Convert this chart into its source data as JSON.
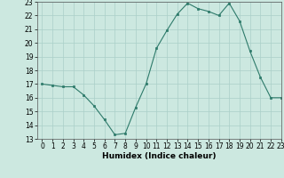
{
  "x": [
    0,
    1,
    2,
    3,
    4,
    5,
    6,
    7,
    8,
    9,
    10,
    11,
    12,
    13,
    14,
    15,
    16,
    17,
    18,
    19,
    20,
    21,
    22,
    23
  ],
  "y": [
    17.0,
    16.9,
    16.8,
    16.8,
    16.2,
    15.4,
    14.4,
    13.3,
    13.4,
    15.3,
    17.0,
    19.6,
    20.9,
    22.1,
    22.9,
    22.5,
    22.3,
    22.0,
    22.9,
    21.6,
    19.4,
    17.5,
    16.0,
    16.0
  ],
  "line_color": "#2d7a6a",
  "marker_color": "#2d7a6a",
  "bg_color": "#cce8e0",
  "grid_color": "#aacfc8",
  "xlabel": "Humidex (Indice chaleur)",
  "ylim": [
    13,
    23
  ],
  "xlim": [
    -0.5,
    23
  ],
  "yticks": [
    13,
    14,
    15,
    16,
    17,
    18,
    19,
    20,
    21,
    22,
    23
  ],
  "xticks": [
    0,
    1,
    2,
    3,
    4,
    5,
    6,
    7,
    8,
    9,
    10,
    11,
    12,
    13,
    14,
    15,
    16,
    17,
    18,
    19,
    20,
    21,
    22,
    23
  ],
  "tick_fontsize": 5.5,
  "xlabel_fontsize": 6.5
}
